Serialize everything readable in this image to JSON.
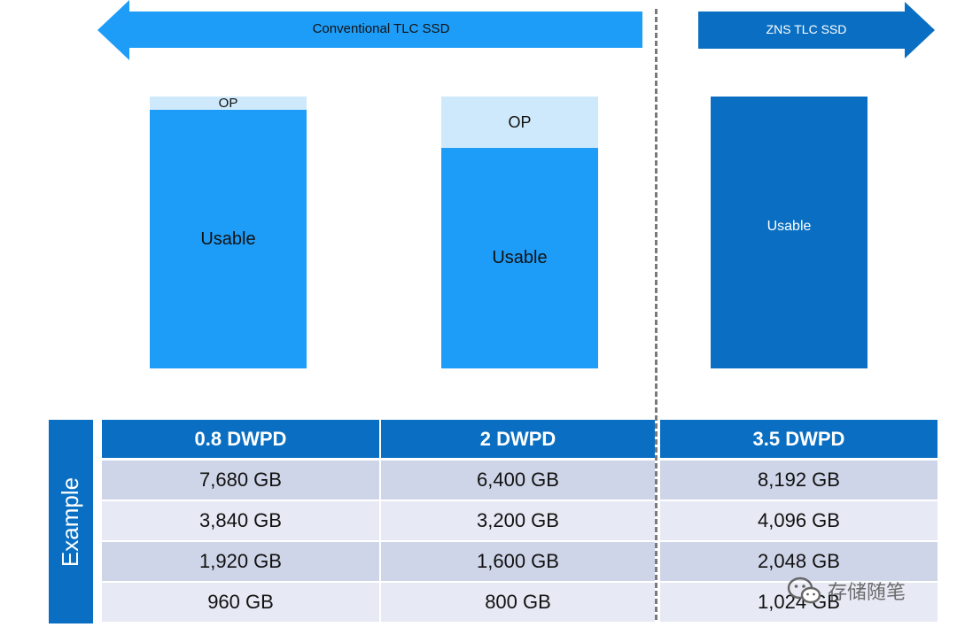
{
  "arrows": {
    "conventional": "Conventional TLC SSD",
    "zns": "ZNS TLC SSD"
  },
  "bars": [
    {
      "op_label": "OP",
      "usable_label": "Usable"
    },
    {
      "op_label": "OP",
      "usable_label": "Usable"
    },
    {
      "usable_label": "Usable"
    }
  ],
  "table": {
    "side_label": "Example",
    "headers": [
      "0.8 DWPD",
      "2 DWPD",
      "3.5 DWPD"
    ],
    "rows": [
      [
        "7,680 GB",
        "6,400 GB",
        "8,192 GB"
      ],
      [
        "3,840 GB",
        "3,200 GB",
        "4,096 GB"
      ],
      [
        "1,920 GB",
        "1,600 GB",
        "2,048 GB"
      ],
      [
        "960 GB",
        "800 GB",
        "1,024 GB"
      ]
    ]
  },
  "watermark": "存储随笔",
  "colors": {
    "light_blue": "#1e9df8",
    "dark_blue": "#0a6fc2",
    "op_blue": "#cde9fb",
    "row_odd": "#cfd5e8",
    "row_even": "#e7eaf4"
  }
}
